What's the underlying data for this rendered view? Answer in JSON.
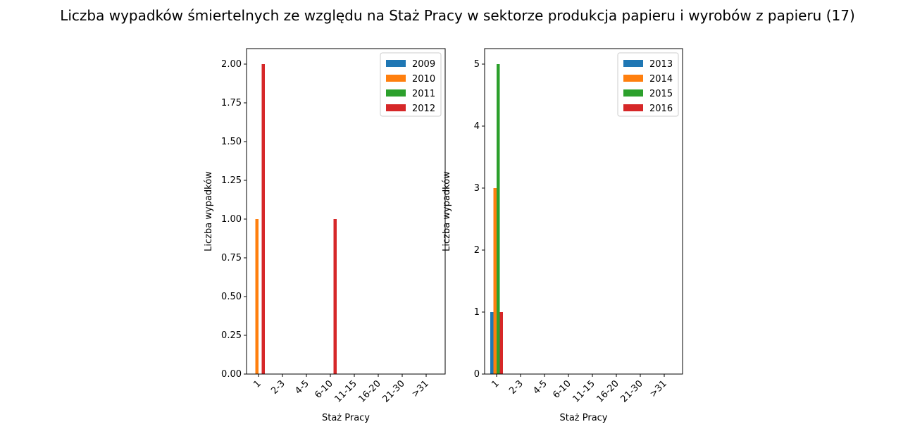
{
  "title": "Liczba wypadków śmiertelnych ze względu na Staż Pracy w sektorze produkcja papieru i wyrobów z papieru  (17)",
  "chart_data": [
    {
      "type": "bar",
      "xlabel": "Staż Pracy",
      "ylabel": "Liczba wypadków",
      "categories": [
        "1",
        "2-3",
        "4-5",
        "6-10",
        "11-15",
        "16-20",
        "21-30",
        ">31"
      ],
      "ylim": [
        0,
        2.1
      ],
      "yticks": [
        "0.00",
        "0.25",
        "0.50",
        "0.75",
        "1.00",
        "1.25",
        "1.50",
        "1.75",
        "2.00"
      ],
      "legend_position": "top-right",
      "grid": false,
      "series": [
        {
          "name": "2009",
          "color": "#1f77b4",
          "values": [
            0,
            0,
            0,
            0,
            0,
            0,
            0,
            0
          ]
        },
        {
          "name": "2010",
          "color": "#ff7f0e",
          "values": [
            1,
            0,
            0,
            0,
            0,
            0,
            0,
            0
          ]
        },
        {
          "name": "2011",
          "color": "#2ca02c",
          "values": [
            0,
            0,
            0,
            0,
            0,
            0,
            0,
            0
          ]
        },
        {
          "name": "2012",
          "color": "#d62728",
          "values": [
            2,
            0,
            0,
            1,
            0,
            0,
            0,
            0
          ]
        }
      ]
    },
    {
      "type": "bar",
      "xlabel": "Staż Pracy",
      "ylabel": "Liczba wypadków",
      "categories": [
        "1",
        "2-3",
        "4-5",
        "6-10",
        "11-15",
        "16-20",
        "21-30",
        ">31"
      ],
      "ylim": [
        0,
        5.25
      ],
      "yticks": [
        "0",
        "1",
        "2",
        "3",
        "4",
        "5"
      ],
      "legend_position": "top-right",
      "grid": false,
      "series": [
        {
          "name": "2013",
          "color": "#1f77b4",
          "values": [
            1,
            0,
            0,
            0,
            0,
            0,
            0,
            0
          ]
        },
        {
          "name": "2014",
          "color": "#ff7f0e",
          "values": [
            3,
            0,
            0,
            0,
            0,
            0,
            0,
            0
          ]
        },
        {
          "name": "2015",
          "color": "#2ca02c",
          "values": [
            5,
            0,
            0,
            0,
            0,
            0,
            0,
            0
          ]
        },
        {
          "name": "2016",
          "color": "#d62728",
          "values": [
            1,
            0,
            0,
            0,
            0,
            0,
            0,
            0
          ]
        }
      ]
    }
  ]
}
